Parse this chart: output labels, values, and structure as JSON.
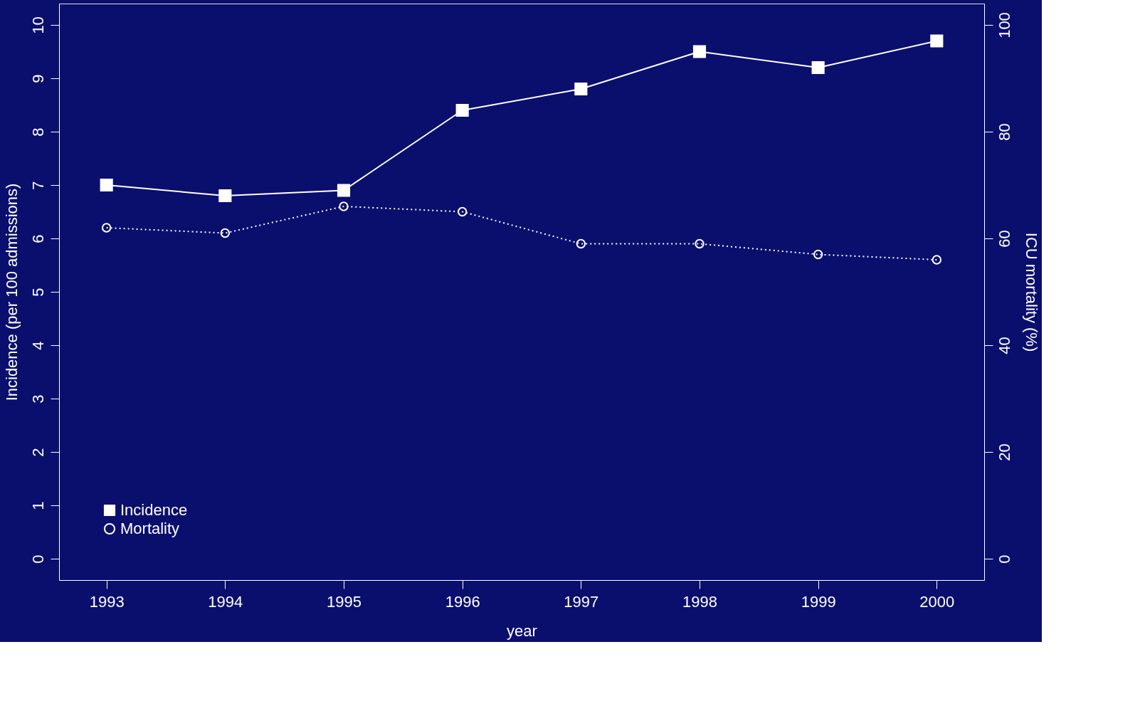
{
  "chart_data": {
    "type": "line",
    "xlabel": "year",
    "ylabel": "Incidence (per 100 admissions)",
    "y2label": "ICU mortality (%)",
    "x": [
      1993,
      1994,
      1995,
      1996,
      1997,
      1998,
      1999,
      2000
    ],
    "series": [
      {
        "name": "Incidence",
        "color": "#ffffff",
        "marker": "square",
        "line_style": "solid",
        "values": [
          7.0,
          6.8,
          6.9,
          8.4,
          8.8,
          9.5,
          9.2,
          9.7
        ]
      },
      {
        "name": "Mortality",
        "color": "#ffffff",
        "marker": "circle",
        "line_style": "dotted",
        "axis": "y2",
        "values": [
          62,
          61,
          66,
          65,
          59,
          59,
          57,
          56
        ]
      }
    ],
    "xlim": [
      1992.6,
      2000.4
    ],
    "xticks": [
      1993,
      1994,
      1995,
      1996,
      1997,
      1998,
      1999,
      2000
    ],
    "ylim": [
      -0.4,
      10.4
    ],
    "yticks": [
      0,
      1,
      2,
      3,
      4,
      5,
      6,
      7,
      8,
      9,
      10
    ],
    "y2lim": [
      -4,
      104
    ],
    "y2ticks": [
      0,
      20,
      40,
      60,
      80,
      100
    ],
    "legend": "bottom left",
    "grid": false
  }
}
